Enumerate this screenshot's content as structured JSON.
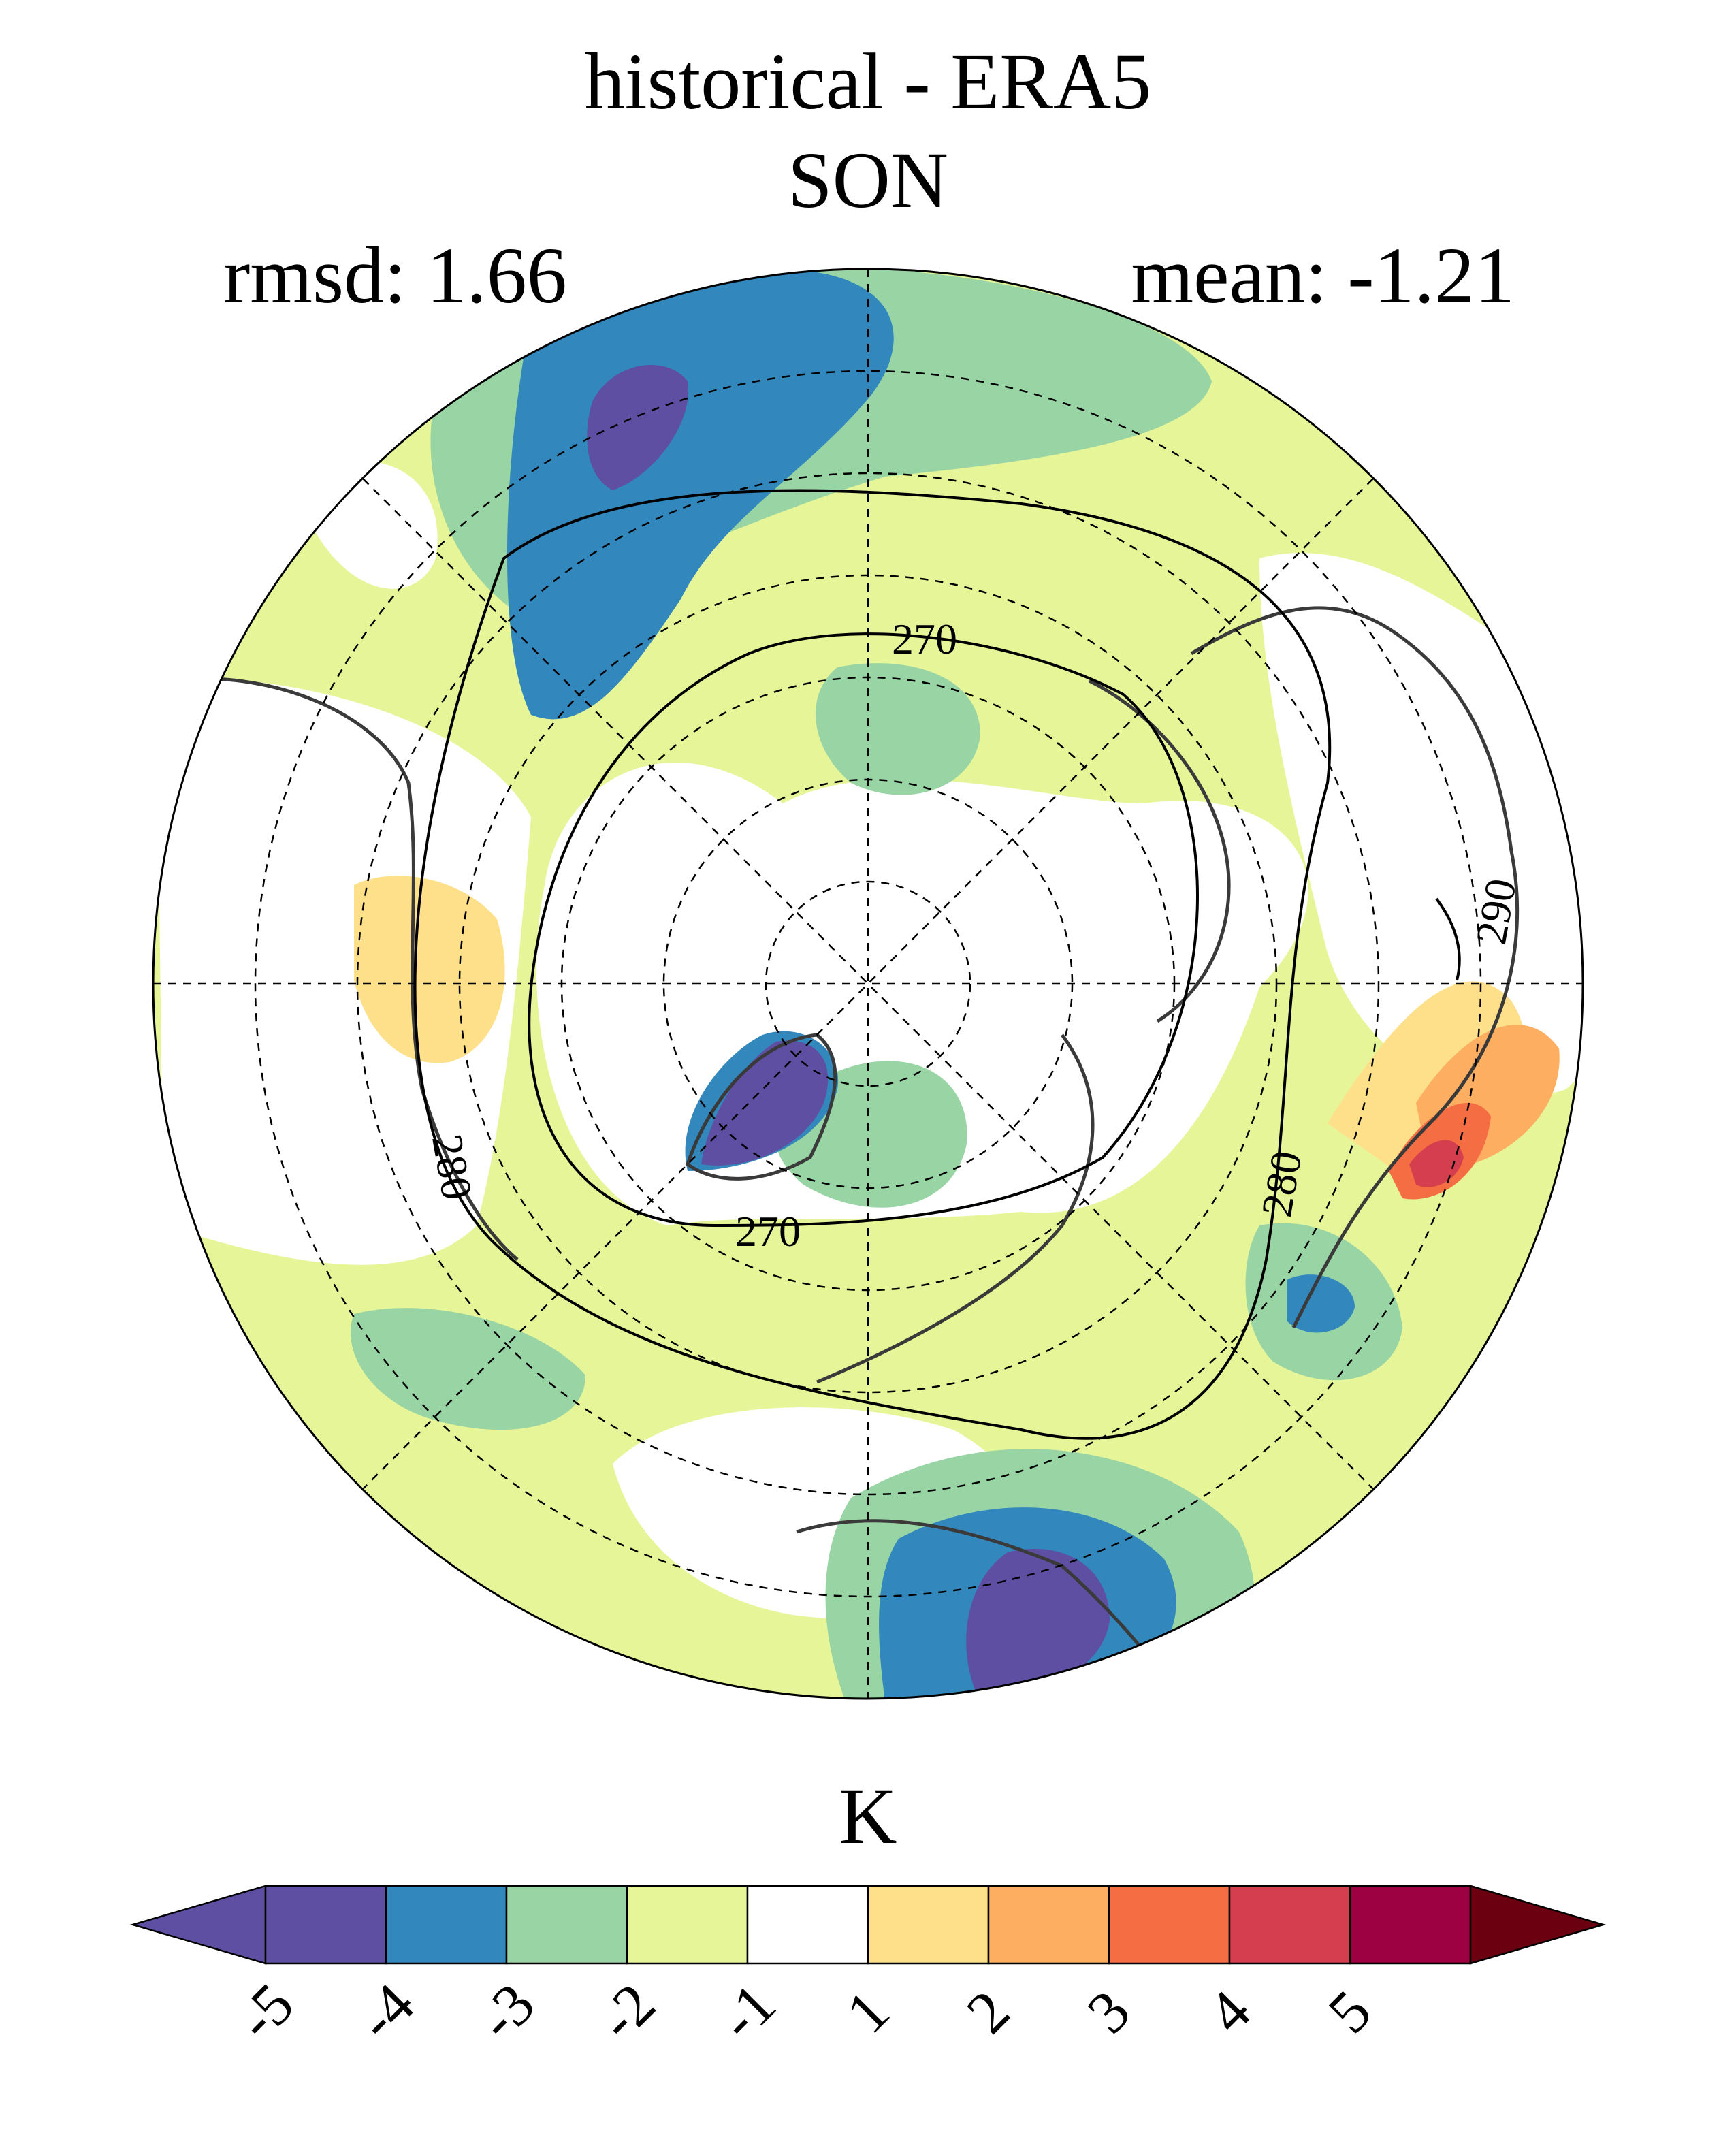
{
  "title": {
    "line1": "historical - ERA5",
    "line2": "SON"
  },
  "stats": {
    "rmsd": "rmsd: 1.66",
    "mean": "mean: -1.21"
  },
  "contours": {
    "labels": [
      "270",
      "270",
      "280",
      "280",
      "290"
    ]
  },
  "colorbar": {
    "unit": "K",
    "ticks": [
      "-5",
      "-4",
      "-3",
      "-2",
      "-1",
      "1",
      "2",
      "3",
      "4",
      "5"
    ],
    "colors": [
      "#5e4fa2",
      "#3288bd",
      "#99d5a4",
      "#e6f598",
      "#ffffff",
      "#fee08b",
      "#fdae61",
      "#f46d43",
      "#d53e4f",
      "#9e0142"
    ],
    "under_color": "#5e4fa2",
    "over_color": "#6b0010"
  },
  "map": {
    "projection": "north polar stereographic",
    "background_color": "#e6f598",
    "coastline_color": "#3a3a3a",
    "grid_style": "dashed"
  }
}
